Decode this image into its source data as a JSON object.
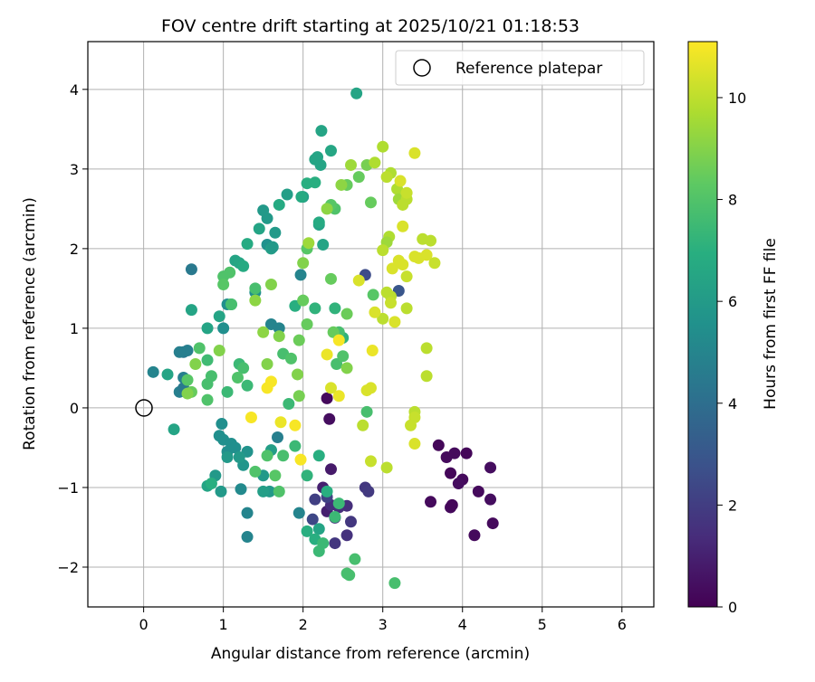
{
  "chart_data": {
    "type": "scatter",
    "title": "FOV centre drift starting at 2025/10/21 01:18:53",
    "xlabel": "Angular distance from reference (arcmin)",
    "ylabel": "Rotation from reference (arcmin)",
    "xlim": [
      -0.7,
      6.4
    ],
    "ylim": [
      -2.5,
      4.6
    ],
    "xticks": [
      0,
      1,
      2,
      3,
      4,
      5,
      6
    ],
    "yticks": [
      -2,
      -1,
      0,
      1,
      2,
      3,
      4
    ],
    "grid": true,
    "legend": {
      "placement": "top-right",
      "entries": [
        "Reference platepar"
      ]
    },
    "reference": {
      "x": 0,
      "y": 0
    },
    "colorbar": {
      "label": "Hours from first FF file",
      "colormap": "viridis",
      "range": [
        0,
        11.1
      ],
      "ticks": [
        0,
        2,
        4,
        6,
        8,
        10
      ]
    },
    "points": [
      [
        3.7,
        -0.47,
        0.2
      ],
      [
        3.8,
        -0.62,
        0.3
      ],
      [
        3.85,
        -0.82,
        0.2
      ],
      [
        3.9,
        -0.57,
        0.3
      ],
      [
        4.0,
        -0.9,
        0.3
      ],
      [
        4.05,
        -0.57,
        0.2
      ],
      [
        3.95,
        -0.95,
        0.4
      ],
      [
        4.2,
        -1.05,
        0.3
      ],
      [
        4.35,
        -0.75,
        0.4
      ],
      [
        4.35,
        -1.15,
        0.4
      ],
      [
        4.38,
        -1.45,
        0.3
      ],
      [
        4.15,
        -1.6,
        0.3
      ],
      [
        3.6,
        -1.18,
        0.3
      ],
      [
        3.85,
        -1.25,
        0.3
      ],
      [
        3.87,
        -1.22,
        0.2
      ],
      [
        2.3,
        0.12,
        0.3
      ],
      [
        2.33,
        -0.14,
        0.4
      ],
      [
        2.35,
        -0.77,
        0.8
      ],
      [
        2.25,
        -1.0,
        1.0
      ],
      [
        2.3,
        -1.3,
        1.0
      ],
      [
        2.35,
        -1.22,
        1.5
      ],
      [
        2.4,
        -1.38,
        1.5
      ],
      [
        2.45,
        -1.25,
        1.5
      ],
      [
        2.55,
        -1.23,
        1.5
      ],
      [
        2.6,
        -1.43,
        1.8
      ],
      [
        2.4,
        -1.7,
        1.8
      ],
      [
        2.55,
        -1.6,
        1.6
      ],
      [
        2.78,
        -1.0,
        1.8
      ],
      [
        2.82,
        -1.05,
        1.9
      ],
      [
        2.3,
        -1.12,
        2.2
      ],
      [
        2.15,
        -1.15,
        2.1
      ],
      [
        2.12,
        -1.4,
        2.4
      ],
      [
        2.78,
        1.67,
        2.6
      ],
      [
        3.2,
        1.47,
        3.0
      ],
      [
        1.22,
        -1.02,
        5.3
      ],
      [
        1.3,
        -1.32,
        5.0
      ],
      [
        1.3,
        -1.62,
        5.0
      ],
      [
        1.68,
        -0.37,
        4.8
      ],
      [
        0.6,
        1.74,
        4.5
      ],
      [
        0.5,
        0.7,
        4.5
      ],
      [
        0.55,
        0.72,
        4.8
      ],
      [
        0.45,
        0.7,
        4.8
      ],
      [
        0.12,
        0.45,
        5.0
      ],
      [
        0.5,
        0.38,
        4.8
      ],
      [
        0.45,
        0.2,
        4.8
      ],
      [
        0.5,
        0.25,
        4.5
      ],
      [
        1.0,
        1.0,
        5.5
      ],
      [
        1.05,
        1.3,
        5.5
      ],
      [
        1.4,
        1.45,
        5.5
      ],
      [
        1.6,
        1.05,
        5.0
      ],
      [
        1.7,
        1.0,
        5.0
      ],
      [
        1.97,
        1.67,
        5.0
      ],
      [
        1.95,
        -1.32,
        5.0
      ],
      [
        1.55,
        2.05,
        5.6
      ],
      [
        1.55,
        2.38,
        6.0
      ],
      [
        1.6,
        2.0,
        6.2
      ],
      [
        1.62,
        2.02,
        6.0
      ],
      [
        1.65,
        2.2,
        6.0
      ],
      [
        1.5,
        2.48,
        6.0
      ],
      [
        1.8,
        2.68,
        6.2
      ],
      [
        2.0,
        2.65,
        6.2
      ],
      [
        2.15,
        3.12,
        6.5
      ],
      [
        2.18,
        3.15,
        6.5
      ],
      [
        2.22,
        3.05,
        6.5
      ],
      [
        2.23,
        3.48,
        6.5
      ],
      [
        2.35,
        3.23,
        6.6
      ],
      [
        2.67,
        3.95,
        6.5
      ],
      [
        2.25,
        2.05,
        6.5
      ],
      [
        2.2,
        2.3,
        6.4
      ],
      [
        2.2,
        2.33,
        6.8
      ],
      [
        1.6,
        -0.53,
        6.2
      ],
      [
        1.58,
        -1.05,
        6.0
      ],
      [
        1.5,
        -1.05,
        6.2
      ],
      [
        1.5,
        -0.85,
        6.0
      ],
      [
        0.98,
        -0.2,
        5.5
      ],
      [
        0.95,
        -0.35,
        5.5
      ],
      [
        1.0,
        -0.4,
        5.5
      ],
      [
        1.1,
        -0.45,
        5.5
      ],
      [
        1.05,
        -0.55,
        5.5
      ],
      [
        1.15,
        -0.5,
        5.5
      ],
      [
        1.3,
        -0.55,
        5.7
      ],
      [
        1.25,
        -0.72,
        5.8
      ],
      [
        1.2,
        -0.62,
        6.0
      ],
      [
        1.05,
        -0.62,
        6.0
      ],
      [
        0.97,
        -1.05,
        6.0
      ],
      [
        0.9,
        -0.85,
        6.0
      ],
      [
        0.8,
        -0.98,
        6.5
      ],
      [
        0.85,
        -0.95,
        7.0
      ],
      [
        0.38,
        -0.27,
        6.5
      ],
      [
        0.3,
        0.42,
        6.5
      ],
      [
        0.6,
        1.23,
        6.5
      ],
      [
        0.8,
        1.0,
        6.5
      ],
      [
        0.95,
        1.15,
        6.5
      ],
      [
        1.1,
        1.3,
        6.5
      ],
      [
        1.15,
        1.85,
        6.5
      ],
      [
        1.2,
        1.82,
        6.6
      ],
      [
        1.25,
        1.78,
        6.8
      ],
      [
        1.3,
        2.06,
        6.8
      ],
      [
        1.45,
        2.25,
        6.5
      ],
      [
        1.7,
        2.55,
        6.8
      ],
      [
        1.98,
        2.65,
        6.8
      ],
      [
        2.05,
        2.82,
        7.0
      ],
      [
        2.15,
        2.83,
        7.0
      ],
      [
        1.9,
        1.28,
        7.0
      ],
      [
        2.15,
        1.25,
        7.2
      ],
      [
        2.4,
        1.25,
        7.2
      ],
      [
        2.5,
        0.88,
        7.2
      ],
      [
        2.2,
        -0.6,
        7.0
      ],
      [
        2.05,
        -0.85,
        7.2
      ],
      [
        2.3,
        -1.05,
        7.0
      ],
      [
        2.05,
        -1.55,
        7.0
      ],
      [
        2.2,
        -1.52,
        6.5
      ],
      [
        2.15,
        -1.65,
        7.0
      ],
      [
        2.2,
        -1.8,
        7.5
      ],
      [
        2.25,
        -1.7,
        7.5
      ],
      [
        2.4,
        -1.37,
        7.5
      ],
      [
        2.45,
        -1.2,
        7.5
      ],
      [
        2.55,
        -2.08,
        7.8
      ],
      [
        2.58,
        -2.1,
        7.8
      ],
      [
        2.65,
        -1.9,
        7.8
      ],
      [
        3.15,
        -2.2,
        7.8
      ],
      [
        2.8,
        -0.05,
        7.8
      ],
      [
        2.42,
        0.55,
        7.8
      ],
      [
        2.45,
        0.95,
        7.8
      ],
      [
        2.5,
        0.65,
        8.0
      ],
      [
        1.82,
        0.05,
        7.5
      ],
      [
        1.9,
        -0.48,
        7.5
      ],
      [
        1.75,
        -0.6,
        7.8
      ],
      [
        1.55,
        -0.6,
        8.0
      ],
      [
        1.65,
        -0.85,
        8.2
      ],
      [
        1.7,
        -1.05,
        8.0
      ],
      [
        1.4,
        -0.8,
        8.0
      ],
      [
        0.8,
        0.6,
        7.6
      ],
      [
        0.85,
        0.4,
        7.8
      ],
      [
        0.8,
        0.3,
        7.8
      ],
      [
        0.8,
        0.1,
        8.0
      ],
      [
        0.7,
        0.75,
        8.0
      ],
      [
        0.55,
        0.35,
        8.2
      ],
      [
        0.6,
        0.2,
        8.5
      ],
      [
        1.05,
        0.2,
        7.5
      ],
      [
        1.2,
        0.55,
        7.5
      ],
      [
        1.25,
        0.5,
        7.8
      ],
      [
        1.3,
        0.28,
        7.5
      ],
      [
        1.18,
        0.38,
        8.0
      ],
      [
        1.1,
        1.3,
        7.8
      ],
      [
        1.0,
        1.65,
        8.0
      ],
      [
        1.08,
        1.7,
        8.0
      ],
      [
        1.0,
        1.55,
        8.2
      ],
      [
        1.4,
        1.5,
        7.8
      ],
      [
        1.75,
        0.68,
        7.8
      ],
      [
        1.85,
        0.62,
        8.0
      ],
      [
        2.05,
        2.0,
        8.2
      ],
      [
        2.4,
        2.5,
        8.0
      ],
      [
        2.35,
        2.55,
        8.2
      ],
      [
        2.55,
        2.8,
        8.5
      ],
      [
        2.7,
        2.9,
        8.5
      ],
      [
        2.85,
        2.58,
        8.5
      ],
      [
        2.8,
        3.05,
        8.8
      ],
      [
        2.88,
        1.42,
        8.2
      ],
      [
        2.05,
        1.05,
        8.5
      ],
      [
        2.0,
        1.35,
        8.5
      ],
      [
        2.35,
        1.62,
        8.5
      ],
      [
        2.55,
        1.18,
        8.6
      ],
      [
        2.55,
        0.5,
        9.0
      ],
      [
        1.95,
        0.85,
        8.6
      ],
      [
        1.93,
        0.42,
        9.0
      ],
      [
        1.95,
        0.15,
        8.8
      ],
      [
        2.38,
        0.95,
        8.5
      ],
      [
        0.95,
        0.72,
        9.0
      ],
      [
        0.65,
        0.55,
        9.0
      ],
      [
        0.55,
        0.18,
        9.0
      ],
      [
        1.5,
        0.95,
        9.2
      ],
      [
        1.55,
        0.55,
        9.0
      ],
      [
        1.7,
        0.9,
        9.0
      ],
      [
        1.6,
        1.55,
        9.0
      ],
      [
        1.4,
        1.35,
        9.2
      ],
      [
        2.0,
        1.82,
        9.0
      ],
      [
        2.07,
        2.07,
        9.5
      ],
      [
        2.3,
        2.5,
        9.2
      ],
      [
        2.48,
        2.8,
        9.2
      ],
      [
        2.6,
        3.05,
        9.5
      ],
      [
        2.9,
        3.08,
        9.8
      ],
      [
        3.0,
        3.28,
        9.8
      ],
      [
        3.1,
        2.95,
        9.8
      ],
      [
        3.05,
        2.9,
        10.0
      ],
      [
        3.18,
        2.75,
        9.8
      ],
      [
        3.2,
        2.62,
        9.5
      ],
      [
        3.25,
        2.55,
        10.0
      ],
      [
        3.3,
        2.62,
        10.0
      ],
      [
        3.3,
        2.7,
        10.2
      ],
      [
        3.22,
        2.85,
        10.5
      ],
      [
        3.25,
        2.28,
        10.5
      ],
      [
        3.08,
        2.15,
        9.8
      ],
      [
        3.05,
        2.08,
        9.5
      ],
      [
        3.0,
        1.98,
        10.0
      ],
      [
        3.12,
        1.75,
        10.5
      ],
      [
        3.2,
        1.85,
        10.5
      ],
      [
        3.25,
        1.8,
        10.5
      ],
      [
        3.3,
        1.65,
        10.2
      ],
      [
        3.05,
        1.45,
        10.0
      ],
      [
        3.1,
        1.4,
        10.0
      ],
      [
        3.1,
        1.32,
        10.2
      ],
      [
        3.0,
        1.12,
        10.0
      ],
      [
        2.9,
        1.2,
        10.5
      ],
      [
        2.7,
        1.6,
        10.5
      ],
      [
        3.15,
        1.08,
        10.5
      ],
      [
        3.3,
        1.25,
        10.0
      ],
      [
        3.4,
        1.9,
        10.5
      ],
      [
        3.45,
        1.88,
        10.5
      ],
      [
        3.55,
        1.92,
        10.5
      ],
      [
        3.5,
        2.12,
        10.0
      ],
      [
        3.6,
        2.1,
        10.0
      ],
      [
        3.65,
        1.82,
        10.2
      ],
      [
        3.4,
        3.2,
        10.5
      ],
      [
        3.55,
        0.75,
        10.0
      ],
      [
        3.55,
        0.4,
        10.0
      ],
      [
        3.4,
        -0.05,
        10.0
      ],
      [
        3.4,
        -0.12,
        10.2
      ],
      [
        3.35,
        -0.22,
        10.2
      ],
      [
        3.4,
        -0.45,
        10.5
      ],
      [
        3.05,
        -0.75,
        10.0
      ],
      [
        2.85,
        -0.67,
        10.2
      ],
      [
        2.75,
        -0.22,
        10.0
      ],
      [
        2.8,
        0.22,
        10.5
      ],
      [
        2.85,
        0.25,
        10.5
      ],
      [
        2.45,
        0.15,
        10.8
      ],
      [
        2.35,
        0.25,
        10.5
      ],
      [
        2.3,
        0.67,
        10.8
      ],
      [
        2.45,
        0.85,
        11.0
      ],
      [
        2.87,
        0.72,
        10.8
      ],
      [
        1.55,
        0.25,
        11.0
      ],
      [
        1.6,
        0.33,
        11.0
      ],
      [
        1.9,
        -0.22,
        11.0
      ],
      [
        1.97,
        -0.65,
        11.0
      ],
      [
        1.72,
        -0.18,
        10.8
      ],
      [
        1.35,
        -0.12,
        11.0
      ]
    ]
  }
}
